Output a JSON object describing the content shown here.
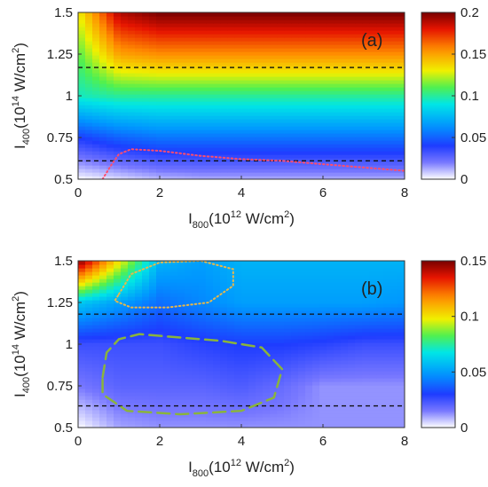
{
  "chart_data": [
    {
      "type": "heatmap",
      "panel_label": "(a)",
      "x_range": [
        0,
        8
      ],
      "y_range": [
        0.5,
        1.5
      ],
      "x_ticks": [
        "0",
        "2",
        "4",
        "6",
        "8"
      ],
      "y_ticks": [
        "0.5",
        "0.75",
        "1",
        "1.25",
        "1.5"
      ],
      "xlabel": {
        "base": "I",
        "sub": "800",
        "pre": "(10",
        "sup": "12",
        "post": " W/cm",
        "sup2": "2",
        "end": ")"
      },
      "ylabel": {
        "base": "I",
        "sub": "400",
        "pre": "(10",
        "sup": "14",
        "post": " W/cm",
        "sup2": "2",
        "end": ")"
      },
      "colorbar": {
        "range": [
          0,
          0.2
        ],
        "ticks": [
          "0",
          "0.05",
          "0.1",
          "0.15",
          "0.2"
        ]
      },
      "colormap": "jet-white",
      "dashed_lines_y": [
        1.17,
        0.61
      ],
      "contour": {
        "style": "dotted",
        "color": "#ff4d6d",
        "points": [
          [
            0.6,
            0.5
          ],
          [
            0.8,
            0.58
          ],
          [
            1.0,
            0.65
          ],
          [
            1.3,
            0.68
          ],
          [
            2.0,
            0.67
          ],
          [
            3.0,
            0.64
          ],
          [
            4.0,
            0.62
          ],
          [
            5.0,
            0.61
          ],
          [
            6.0,
            0.59
          ],
          [
            7.0,
            0.57
          ],
          [
            8.0,
            0.55
          ]
        ]
      },
      "rows": [
        {
          "y": 0.5,
          "values": [
            0.0,
            0.005,
            0.01,
            0.012,
            0.012,
            0.012,
            0.012,
            0.012,
            0.012
          ]
        },
        {
          "y": 0.75,
          "values": [
            0.04,
            0.05,
            0.055,
            0.055,
            0.055,
            0.055,
            0.055,
            0.055,
            0.055
          ]
        },
        {
          "y": 1.0,
          "values": [
            0.095,
            0.1,
            0.1,
            0.1,
            0.1,
            0.1,
            0.1,
            0.1,
            0.1
          ]
        },
        {
          "y": 1.25,
          "values": [
            0.11,
            0.15,
            0.155,
            0.155,
            0.155,
            0.155,
            0.155,
            0.155,
            0.155
          ]
        },
        {
          "y": 1.5,
          "values": [
            0.13,
            0.19,
            0.2,
            0.2,
            0.2,
            0.2,
            0.2,
            0.2,
            0.2
          ]
        }
      ]
    },
    {
      "type": "heatmap",
      "panel_label": "(b)",
      "x_range": [
        0,
        8
      ],
      "y_range": [
        0.5,
        1.5
      ],
      "x_ticks": [
        "0",
        "2",
        "4",
        "6",
        "8"
      ],
      "y_ticks": [
        "0.5",
        "0.75",
        "1",
        "1.25",
        "1.5"
      ],
      "xlabel": {
        "base": "I",
        "sub": "800",
        "pre": "(10",
        "sup": "12",
        "post": " W/cm",
        "sup2": "2",
        "end": ")"
      },
      "ylabel": {
        "base": "I",
        "sub": "400",
        "pre": "(10",
        "sup": "14",
        "post": " W/cm",
        "sup2": "2",
        "end": ")"
      },
      "colorbar": {
        "range": [
          0,
          0.15
        ],
        "ticks": [
          "0",
          "0.05",
          "0.1",
          "0.15"
        ]
      },
      "colormap": "jet-white",
      "dashed_lines_y": [
        1.18,
        0.63
      ],
      "contours": [
        {
          "style": "dotted",
          "color": "#e8b84a",
          "points": [
            [
              1.0,
              1.3
            ],
            [
              1.3,
              1.42
            ],
            [
              2.0,
              1.49
            ],
            [
              3.0,
              1.5
            ],
            [
              3.8,
              1.45
            ],
            [
              3.8,
              1.35
            ],
            [
              3.2,
              1.25
            ],
            [
              2.2,
              1.22
            ],
            [
              1.3,
              1.22
            ],
            [
              0.9,
              1.26
            ],
            [
              1.0,
              1.3
            ]
          ]
        },
        {
          "style": "dashed",
          "color": "#8ab43c",
          "points": [
            [
              0.6,
              0.8
            ],
            [
              0.7,
              0.95
            ],
            [
              1.0,
              1.03
            ],
            [
              1.5,
              1.06
            ],
            [
              2.5,
              1.04
            ],
            [
              3.5,
              1.02
            ],
            [
              4.5,
              0.98
            ],
            [
              5.0,
              0.85
            ],
            [
              4.8,
              0.68
            ],
            [
              4.0,
              0.6
            ],
            [
              2.5,
              0.58
            ],
            [
              1.2,
              0.6
            ],
            [
              0.6,
              0.7
            ],
            [
              0.6,
              0.8
            ]
          ]
        }
      ],
      "rows": [
        {
          "y": 0.5,
          "values": [
            0.0,
            0.01,
            0.012,
            0.012,
            0.012,
            0.012,
            0.012,
            0.012,
            0.012
          ]
        },
        {
          "y": 0.75,
          "values": [
            0.015,
            0.02,
            0.02,
            0.02,
            0.022,
            0.018,
            0.012,
            0.012,
            0.012
          ]
        },
        {
          "y": 1.0,
          "values": [
            0.025,
            0.025,
            0.025,
            0.028,
            0.03,
            0.03,
            0.028,
            0.025,
            0.025
          ]
        },
        {
          "y": 1.25,
          "values": [
            0.06,
            0.05,
            0.04,
            0.045,
            0.05,
            0.05,
            0.05,
            0.05,
            0.048
          ]
        },
        {
          "y": 1.5,
          "values": [
            0.15,
            0.1,
            0.055,
            0.05,
            0.055,
            0.055,
            0.055,
            0.055,
            0.055
          ]
        }
      ]
    }
  ]
}
